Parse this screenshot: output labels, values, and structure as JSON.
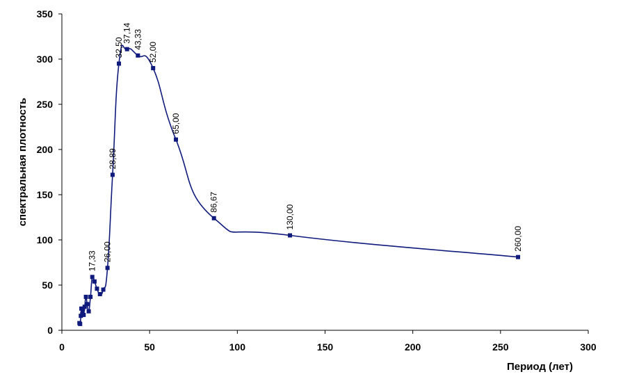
{
  "chart_data": {
    "type": "line",
    "title": "",
    "xlabel": "Период (лет)",
    "ylabel": "спектральная плотность",
    "xlim": [
      0,
      300
    ],
    "ylim": [
      0,
      350
    ],
    "x_ticks": [
      0,
      50,
      100,
      150,
      200,
      250,
      300
    ],
    "y_ticks": [
      0,
      50,
      100,
      150,
      200,
      250,
      300,
      350
    ],
    "grid": false,
    "legend": "none",
    "colors": {
      "line": "#0f1a7c",
      "marker": "#0f1a7c"
    },
    "series": [
      {
        "x": [
          10.0,
          10.4,
          10.8,
          11.1,
          11.6,
          12.0,
          12.4,
          13.0,
          13.7,
          14.4,
          15.3,
          16.3,
          17.33,
          18.6,
          20.0,
          21.7,
          23.6,
          26.0,
          28.89,
          32.5,
          37.14,
          43.33,
          52.0,
          65.0,
          86.67,
          130.0,
          260.0
        ],
        "y": [
          8,
          7,
          16,
          24,
          18,
          24,
          17,
          26,
          37,
          29,
          21,
          37,
          59,
          54,
          46,
          40,
          45,
          69,
          172,
          295,
          311,
          304,
          290,
          211,
          124,
          105,
          81
        ]
      }
    ],
    "data_labels": [
      {
        "x": 17.33,
        "y": 59,
        "text": "17,33"
      },
      {
        "x": 26.0,
        "y": 69,
        "text": "26,00"
      },
      {
        "x": 28.89,
        "y": 172,
        "text": "28,89"
      },
      {
        "x": 32.5,
        "y": 295,
        "text": "32,50"
      },
      {
        "x": 37.14,
        "y": 311,
        "text": "37,14"
      },
      {
        "x": 43.33,
        "y": 304,
        "text": "43,33"
      },
      {
        "x": 52.0,
        "y": 290,
        "text": "52,00"
      },
      {
        "x": 65.0,
        "y": 211,
        "text": "65,00"
      },
      {
        "x": 86.67,
        "y": 124,
        "text": "86,67"
      },
      {
        "x": 130.0,
        "y": 105,
        "text": "130,00"
      },
      {
        "x": 260.0,
        "y": 81,
        "text": "260,00"
      }
    ]
  }
}
